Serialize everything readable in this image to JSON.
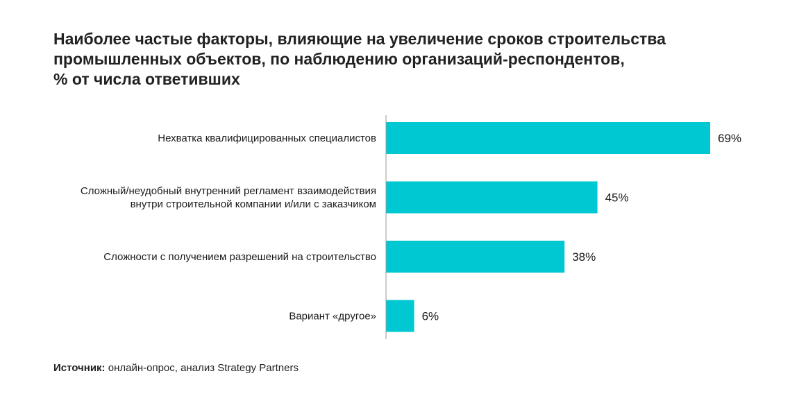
{
  "title_lines": [
    "Наиболее частые факторы, влияющие на увеличение сроков строительства",
    "промышленных объектов, по наблюдению организаций-респондентов,",
    "% от числа ответивших"
  ],
  "source": {
    "label": "Источник:",
    "text": " онлайн-опрос, анализ Strategy Partners"
  },
  "colors": {
    "bar": "#00c8d2",
    "axis": "#999999"
  },
  "chart_data": {
    "type": "bar",
    "orientation": "horizontal",
    "categories": [
      [
        "Нехватка квалифицированных специалистов"
      ],
      [
        "Сложный/неудобный внутренний регламент взаимодействия",
        "внутри строительной компании и/или с заказчиком"
      ],
      [
        "Сложности с получением разрешений на строительство"
      ],
      [
        "Вариант «другое»"
      ]
    ],
    "values": [
      69,
      45,
      38,
      6
    ],
    "value_labels": [
      "69%",
      "45%",
      "38%",
      "6%"
    ],
    "xlim": [
      0,
      69
    ],
    "grid": false
  }
}
